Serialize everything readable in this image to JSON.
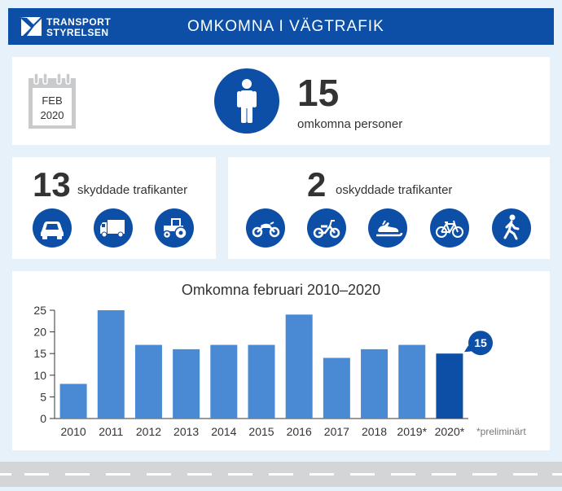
{
  "header": {
    "logo_line1": "TRANSPORT",
    "logo_line2": "STYRELSEN",
    "title": "OMKOMNA I VÄGTRAFIK"
  },
  "summary": {
    "month": "FEB",
    "year": "2020",
    "total": "15",
    "total_label": "omkomna personer"
  },
  "protected": {
    "count": "13",
    "label": "skyddade trafikanter",
    "icons": [
      "car-icon",
      "truck-icon",
      "tractor-icon"
    ]
  },
  "unprotected": {
    "count": "2",
    "label": "oskyddade trafikanter",
    "icons": [
      "motorcycle-icon",
      "moped-icon",
      "snowmobile-icon",
      "bicycle-icon",
      "pedestrian-icon"
    ]
  },
  "chart_data": {
    "type": "bar",
    "title": "Omkomna februari 2010–2020",
    "categories": [
      "2010",
      "2011",
      "2012",
      "2013",
      "2014",
      "2015",
      "2016",
      "2017",
      "2018",
      "2019*",
      "2020*"
    ],
    "values": [
      8,
      25,
      17,
      16,
      17,
      17,
      24,
      14,
      16,
      17,
      15
    ],
    "ylim": [
      0,
      25
    ],
    "yticks": [
      "0",
      "5",
      "10",
      "15",
      "20",
      "25"
    ],
    "highlight_index": 10,
    "callout": "15",
    "footnote": "*preliminärt",
    "colors": {
      "bar": "#4a8ad4",
      "highlight": "#0d4fa6"
    },
    "grid": false
  },
  "colors": {
    "brand": "#0d4fa6",
    "background": "#e7f1fa"
  }
}
